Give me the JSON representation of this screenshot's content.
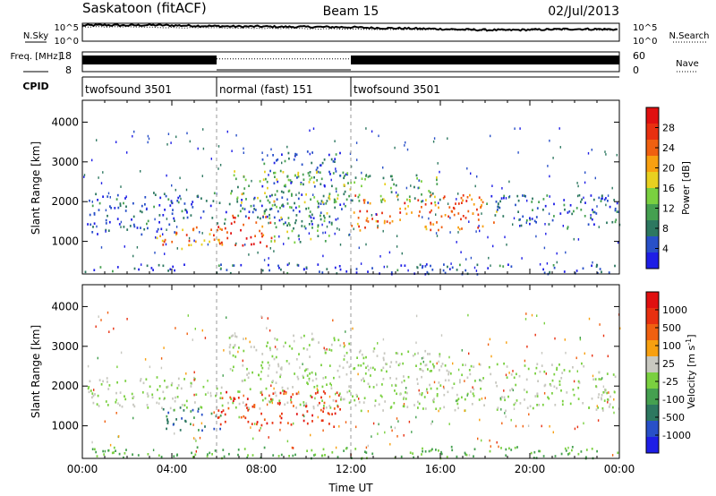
{
  "header": {
    "station": "Saskatoon (fitACF)",
    "beam": "Beam 15",
    "date": "02/Jul/2013"
  },
  "chart_data": [
    {
      "id": "noise",
      "type": "line",
      "title": "",
      "ylabel_left": "N.Sky",
      "ylabel_right": "N.Search",
      "ylim": [
        0,
        5
      ],
      "yticks_left": [
        "10^5",
        "10^0"
      ],
      "yticks_right": [
        "10^5",
        "10^0"
      ],
      "series": [
        {
          "name": "N.Sky",
          "x_hours": [
            0,
            1,
            2,
            3,
            4,
            5,
            6,
            7,
            8,
            9,
            10,
            11,
            12,
            13,
            14,
            15,
            16,
            17,
            18,
            19,
            20,
            21,
            22,
            23,
            24
          ],
          "values": [
            4.4,
            4.5,
            4.4,
            4.5,
            4.4,
            4.3,
            4.2,
            4.1,
            4.1,
            4.0,
            4.0,
            3.95,
            3.9,
            3.7,
            3.6,
            3.5,
            3.4,
            3.25,
            3.15,
            3.1,
            3.2,
            3.3,
            3.4,
            3.35,
            3.3
          ]
        },
        {
          "name": "N.Search",
          "x_hours": [
            0,
            2,
            4,
            6,
            8,
            10,
            12,
            14,
            16,
            18,
            20,
            22,
            24
          ],
          "values": [
            4.0,
            4.0,
            3.8,
            3.7,
            3.6,
            3.5,
            3.4,
            3.3,
            3.2,
            3.0,
            3.1,
            3.2,
            3.0
          ]
        }
      ]
    },
    {
      "id": "freq-nave",
      "type": "line",
      "ylabel_left": "Freq. [MHz]",
      "ylabel_right": "Nave",
      "yticks_left": [
        "18",
        "8"
      ],
      "yticks_right": [
        "60",
        "0"
      ],
      "series": [
        {
          "name": "Freq.",
          "segments": [
            [
              0,
              6,
              0.55
            ],
            [
              6,
              12,
              0.0
            ],
            [
              12,
              24,
              0.55
            ]
          ]
        },
        {
          "name": "Nave",
          "segments": [
            [
              0,
              6,
              0.45
            ],
            [
              6,
              12,
              0.65
            ],
            [
              12,
              24,
              0.45
            ]
          ]
        }
      ]
    },
    {
      "id": "cpid",
      "type": "table",
      "label": "CPID",
      "segments": [
        {
          "start_hour": 0,
          "end_hour": 6,
          "name": "twofsound 3501"
        },
        {
          "start_hour": 6,
          "end_hour": 12,
          "name": "normal (fast) 151"
        },
        {
          "start_hour": 12,
          "end_hour": 24,
          "name": "twofsound 3501"
        }
      ]
    },
    {
      "id": "power",
      "type": "heatmap",
      "ylabel": "Slant Range [km]",
      "xlim": [
        0,
        24
      ],
      "ylim": [
        180,
        4550
      ],
      "yticks": [
        1000,
        2000,
        3000,
        4000
      ],
      "colorbar": {
        "label": "Power [dB]",
        "ticks": [
          "28",
          "24",
          "20",
          "16",
          "12",
          "8",
          "4"
        ],
        "colors": [
          "#1e1ee6",
          "#2850c8",
          "#2d7860",
          "#45a050",
          "#7ad040",
          "#e8d020",
          "#f8a010",
          "#f06010",
          "#e83010",
          "#e01010"
        ]
      },
      "regions": [
        {
          "t0": 0.2,
          "t1": 12.0,
          "r0": 1450,
          "r1": 2250,
          "level": 0.2
        },
        {
          "t0": 0.2,
          "t1": 4.2,
          "r0": 1200,
          "r1": 1500,
          "level": 0.15
        },
        {
          "t0": 3.3,
          "t1": 6.3,
          "r0": 800,
          "r1": 1400,
          "level": 0.7
        },
        {
          "t0": 6.0,
          "t1": 8.5,
          "r0": 900,
          "r1": 1700,
          "level": 0.85
        },
        {
          "t0": 8.0,
          "t1": 11.0,
          "r0": 1000,
          "r1": 2000,
          "level": 0.35
        },
        {
          "t0": 8.0,
          "t1": 12.0,
          "r0": 2400,
          "r1": 3300,
          "level": 0.2
        },
        {
          "t0": 6.5,
          "t1": 12.0,
          "r0": 2000,
          "r1": 2800,
          "level": 0.45
        },
        {
          "t0": 12.0,
          "t1": 18.5,
          "r0": 1300,
          "r1": 2200,
          "level": 0.75
        },
        {
          "t0": 12.0,
          "t1": 16.0,
          "r0": 2000,
          "r1": 2700,
          "level": 0.35
        },
        {
          "t0": 18.0,
          "t1": 24.0,
          "r0": 1350,
          "r1": 2200,
          "level": 0.2
        },
        {
          "t0": 0.0,
          "t1": 24.0,
          "r0": 200,
          "r1": 450,
          "level": 0.15
        }
      ]
    },
    {
      "id": "velocity",
      "type": "heatmap",
      "ylabel": "Slant Range [km]",
      "xlabel": "Time UT",
      "xlim": [
        0,
        24
      ],
      "ylim": [
        180,
        4550
      ],
      "yticks": [
        1000,
        2000,
        3000,
        4000
      ],
      "xticks": [
        "00:00",
        "04:00",
        "08:00",
        "12:00",
        "16:00",
        "20:00",
        "00:00"
      ],
      "colorbar": {
        "label": "Velocity [m s^-1]",
        "ticks": [
          "1000",
          "500",
          "100",
          "25",
          "-25",
          "-100",
          "-500",
          "-1000"
        ],
        "colors": [
          "#1e1ee6",
          "#2850c8",
          "#2d7860",
          "#45a050",
          "#7ad040",
          "#c8c8c0",
          "#f8a010",
          "#f06010",
          "#e83010",
          "#e01010"
        ]
      },
      "regions": [
        {
          "t0": 0.2,
          "t1": 12.0,
          "r0": 1450,
          "r1": 2250,
          "level": 0.5
        },
        {
          "t0": 3.5,
          "t1": 6.5,
          "r0": 900,
          "r1": 1500,
          "level": 0.25
        },
        {
          "t0": 6.0,
          "t1": 11.5,
          "r0": 1000,
          "r1": 1900,
          "level": 0.85
        },
        {
          "t0": 6.5,
          "t1": 12.0,
          "r0": 2200,
          "r1": 3300,
          "level": 0.5
        },
        {
          "t0": 12.0,
          "t1": 24.0,
          "r0": 1400,
          "r1": 2600,
          "level": 0.5
        },
        {
          "t0": 12.0,
          "t1": 16.0,
          "r0": 2400,
          "r1": 3000,
          "level": 0.5
        },
        {
          "t0": 0.0,
          "t1": 24.0,
          "r0": 200,
          "r1": 500,
          "level": 0.4
        }
      ]
    }
  ]
}
